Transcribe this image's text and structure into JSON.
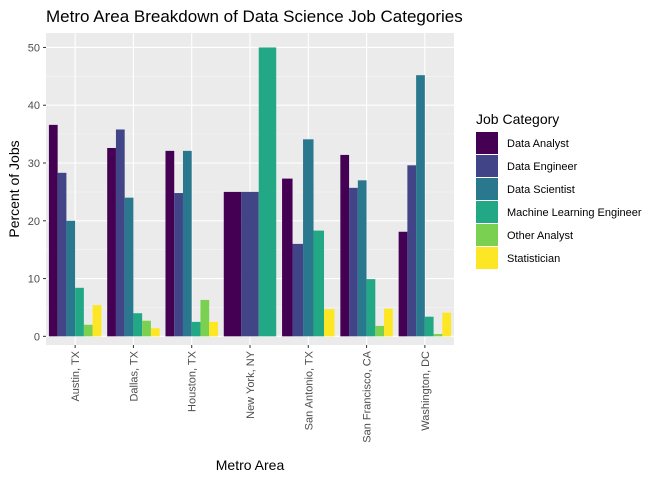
{
  "chart_data": {
    "type": "bar",
    "title": "Metro Area Breakdown of Data Science Job Categories",
    "xlabel": "Metro Area",
    "ylabel": "Percent of Jobs",
    "ylim": [
      -1.5,
      52.5
    ],
    "yticks": [
      0,
      10,
      20,
      30,
      40,
      50
    ],
    "grid": true,
    "legend_title": "Job Category",
    "legend_position": "right",
    "categories": [
      "Austin, TX",
      "Dallas, TX",
      "Houston, TX",
      "New York, NY",
      "San Antonio, TX",
      "San Francisco, CA",
      "Washington, DC"
    ],
    "series": [
      {
        "name": "Data Analyst",
        "color": "#440154",
        "values": [
          36.6,
          32.6,
          32.1,
          25.0,
          27.3,
          31.4,
          18.1
        ]
      },
      {
        "name": "Data Engineer",
        "color": "#414487",
        "values": [
          28.3,
          35.8,
          24.8,
          25.0,
          16.0,
          25.7,
          29.6
        ]
      },
      {
        "name": "Data Scientist",
        "color": "#2A788E",
        "values": [
          20.0,
          24.0,
          32.1,
          null,
          34.1,
          27.0,
          45.2
        ]
      },
      {
        "name": "Machine Learning Engineer",
        "color": "#22A884",
        "values": [
          8.4,
          4.0,
          2.5,
          50.0,
          18.3,
          9.9,
          3.4
        ]
      },
      {
        "name": "Other Analyst",
        "color": "#7AD151",
        "values": [
          2.0,
          2.7,
          6.3,
          null,
          null,
          1.8,
          0.4
        ]
      },
      {
        "name": "Statistician",
        "color": "#FDE725",
        "values": [
          5.4,
          1.4,
          2.5,
          null,
          4.7,
          4.8,
          4.1
        ]
      }
    ]
  }
}
